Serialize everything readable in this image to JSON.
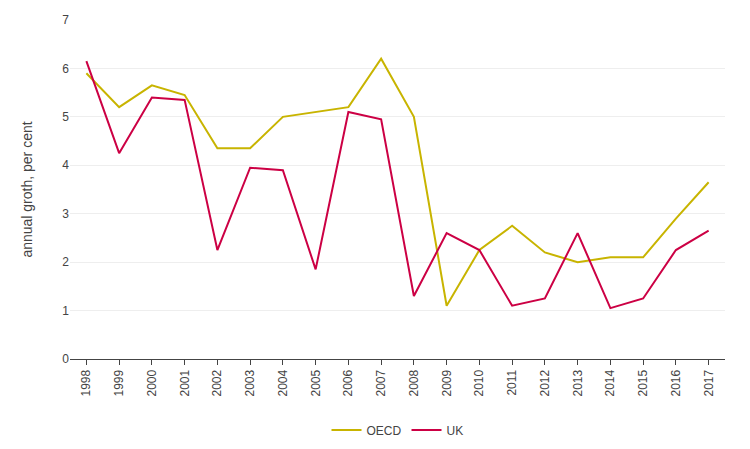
{
  "chart_data": {
    "type": "line",
    "x": [
      1998,
      1999,
      2000,
      2001,
      2002,
      2003,
      2004,
      2005,
      2006,
      2007,
      2008,
      2009,
      2010,
      2011,
      2012,
      2013,
      2014,
      2015,
      2016,
      2017
    ],
    "series": [
      {
        "name": "OECD",
        "color": "#c8b400",
        "values": [
          5.9,
          5.2,
          5.65,
          5.45,
          4.35,
          4.35,
          5.0,
          5.1,
          5.2,
          6.2,
          5.0,
          1.1,
          2.25,
          2.75,
          2.2,
          2.0,
          2.1,
          2.1,
          2.9,
          3.65
        ]
      },
      {
        "name": "UK",
        "color": "#cc0044",
        "values": [
          6.15,
          4.25,
          5.4,
          5.35,
          2.25,
          3.95,
          3.9,
          1.85,
          5.1,
          4.95,
          1.3,
          2.6,
          2.25,
          1.1,
          1.25,
          2.6,
          1.05,
          1.25,
          2.25,
          2.65
        ]
      }
    ],
    "ylabel": "annual groth, per cent",
    "xlim": [
      1997.5,
      2017.5
    ],
    "xticks": [
      1998,
      1999,
      2000,
      2001,
      2002,
      2003,
      2004,
      2005,
      2006,
      2007,
      2008,
      2009,
      2010,
      2011,
      2012,
      2013,
      2014,
      2015,
      2016,
      2017
    ],
    "ylim": [
      0,
      7
    ],
    "yticks": [
      0,
      1,
      2,
      3,
      4,
      5,
      6,
      7
    ],
    "grid": true,
    "legend": "bottom"
  }
}
